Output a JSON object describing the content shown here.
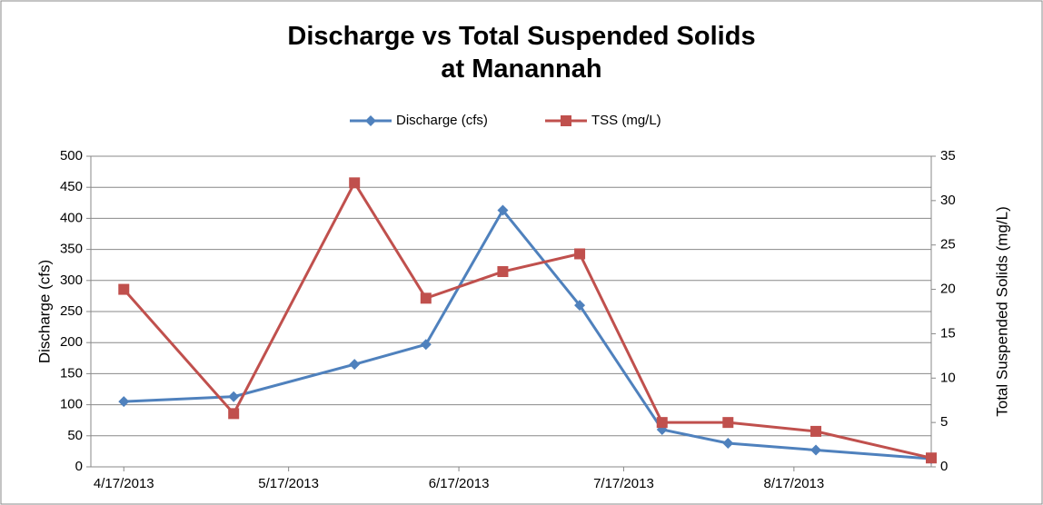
{
  "chart_data": {
    "type": "line",
    "title": "Discharge vs Total Suspended Solids at Manannah",
    "ylabel": "Discharge (cfs)",
    "y2label": "Total Suspended Solids (mg/L)",
    "x": [
      "4/17/2013",
      "5/7/2013",
      "5/29/2013",
      "6/11/2013",
      "6/25/2013",
      "7/9/2013",
      "7/24/2013",
      "8/5/2013",
      "8/21/2013",
      "9/11/2013"
    ],
    "xlim": [
      "4/11/2013",
      "9/11/2013"
    ],
    "xticks": [
      "4/17/2013",
      "5/17/2013",
      "6/17/2013",
      "7/17/2013",
      "8/17/2013"
    ],
    "ylim": [
      0,
      500
    ],
    "yticks": [
      0,
      50,
      100,
      150,
      200,
      250,
      300,
      350,
      400,
      450,
      500
    ],
    "y2lim": [
      0,
      35
    ],
    "y2ticks": [
      0,
      5,
      10,
      15,
      20,
      25,
      30,
      35
    ],
    "grid": true,
    "legend": "top",
    "series": [
      {
        "name": "Discharge (cfs)",
        "color": "#4f81bd",
        "marker": "diamond",
        "values": [
          105,
          113,
          165,
          197,
          413,
          260,
          60,
          38,
          27,
          13
        ]
      },
      {
        "name": "TSS (mg/L)",
        "color": "#c0504d",
        "marker": "square",
        "axis": "y2",
        "values": [
          20,
          6,
          32,
          19,
          22,
          24,
          5,
          5,
          4,
          1
        ]
      }
    ]
  }
}
